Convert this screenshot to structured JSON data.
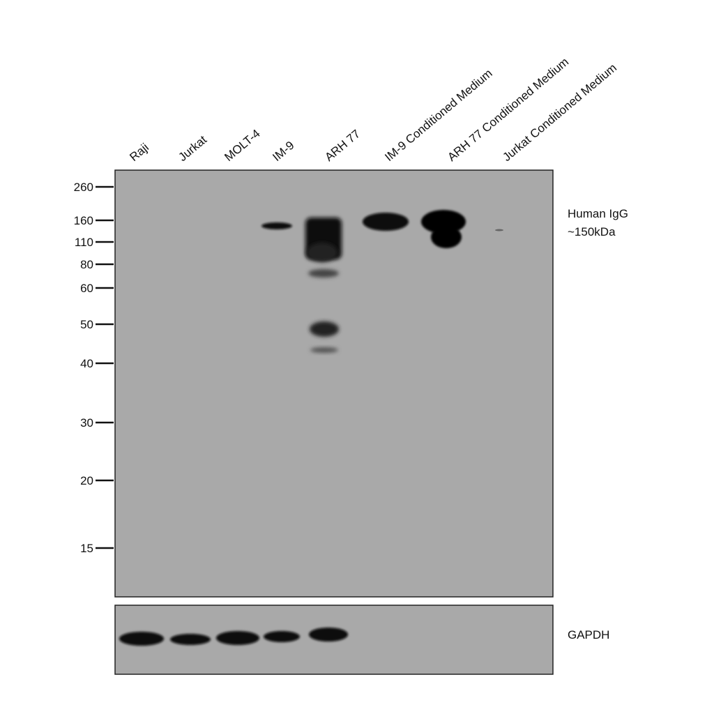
{
  "lanes": [
    "Raji",
    "Jurkat",
    "MOLT-4",
    "IM-9",
    "ARH 77",
    "IM-9 Conditioned Medium",
    "ARH 77 Conditioned Medium",
    "Jurkat Conditioned Medium"
  ],
  "markers": [
    260,
    160,
    110,
    80,
    60,
    50,
    40,
    30,
    20,
    15
  ],
  "annotations": {
    "target": "Human IgG",
    "size": "~150kDa",
    "loading_control": "GAPDH"
  }
}
